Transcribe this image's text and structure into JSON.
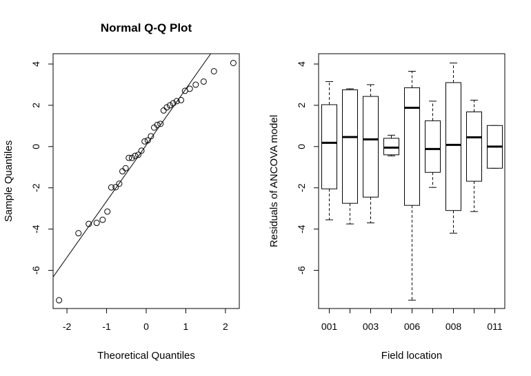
{
  "colors": {
    "background": "#ffffff",
    "ink": "#000000"
  },
  "chart_data": [
    {
      "type": "scatter",
      "title": "Normal Q-Q Plot",
      "xlabel": "Theoretical Quantiles",
      "ylabel": "Sample Quantiles",
      "xlim": [
        -2.35,
        2.35
      ],
      "ylim": [
        -7.85,
        4.5
      ],
      "xticks": [
        -2,
        -1,
        0,
        1,
        2
      ],
      "yticks": [
        -6,
        -4,
        -2,
        0,
        2,
        4
      ],
      "xtick_labels": [
        "-2",
        "-1",
        "0",
        "1",
        "2"
      ],
      "ytick_labels": [
        "-6",
        "-4",
        "-2",
        "0",
        "2",
        "4"
      ],
      "grid": false,
      "marker": "open-circle",
      "points": [
        {
          "x": -2.2,
          "y": -7.45
        },
        {
          "x": -1.71,
          "y": -4.2
        },
        {
          "x": -1.45,
          "y": -3.75
        },
        {
          "x": -1.25,
          "y": -3.7
        },
        {
          "x": -1.1,
          "y": -3.55
        },
        {
          "x": -0.98,
          "y": -3.15
        },
        {
          "x": -0.88,
          "y": -1.98
        },
        {
          "x": -0.77,
          "y": -1.97
        },
        {
          "x": -0.68,
          "y": -1.8
        },
        {
          "x": -0.6,
          "y": -1.2
        },
        {
          "x": -0.52,
          "y": -1.05
        },
        {
          "x": -0.44,
          "y": -0.55
        },
        {
          "x": -0.36,
          "y": -0.55
        },
        {
          "x": -0.28,
          "y": -0.45
        },
        {
          "x": -0.2,
          "y": -0.4
        },
        {
          "x": -0.12,
          "y": -0.2
        },
        {
          "x": -0.04,
          "y": 0.25
        },
        {
          "x": 0.04,
          "y": 0.3
        },
        {
          "x": 0.12,
          "y": 0.5
        },
        {
          "x": 0.2,
          "y": 0.92
        },
        {
          "x": 0.28,
          "y": 1.05
        },
        {
          "x": 0.36,
          "y": 1.1
        },
        {
          "x": 0.44,
          "y": 1.75
        },
        {
          "x": 0.52,
          "y": 1.9
        },
        {
          "x": 0.6,
          "y": 2.0
        },
        {
          "x": 0.68,
          "y": 2.1
        },
        {
          "x": 0.77,
          "y": 2.2
        },
        {
          "x": 0.88,
          "y": 2.25
        },
        {
          "x": 0.98,
          "y": 2.7
        },
        {
          "x": 1.1,
          "y": 2.8
        },
        {
          "x": 1.25,
          "y": 3.0
        },
        {
          "x": 1.45,
          "y": 3.15
        },
        {
          "x": 1.71,
          "y": 3.65
        },
        {
          "x": 2.2,
          "y": 4.05
        }
      ],
      "reference_line": {
        "intercept": 0.07,
        "slope": 2.72
      }
    },
    {
      "type": "box",
      "title": "",
      "xlabel": "Field location",
      "ylabel": "Residuals of ANCOVA model",
      "ylim": [
        -7.85,
        4.5
      ],
      "yticks": [
        -6,
        -4,
        -2,
        0,
        2,
        4
      ],
      "ytick_labels": [
        "-6",
        "-4",
        "-2",
        "0",
        "2",
        "4"
      ],
      "grid": false,
      "categories": [
        "001",
        "",
        "003",
        "",
        "006",
        "",
        "008",
        "",
        "011"
      ],
      "boxes": [
        {
          "whisker_low": -3.55,
          "q1": -2.05,
          "median": 0.18,
          "q3": 2.03,
          "whisker_high": 3.15
        },
        {
          "whisker_low": -3.75,
          "q1": -2.75,
          "median": 0.46,
          "q3": 2.75,
          "whisker_high": 2.8
        },
        {
          "whisker_low": -3.7,
          "q1": -2.45,
          "median": 0.35,
          "q3": 2.43,
          "whisker_high": 3.0
        },
        {
          "whisker_low": -0.45,
          "q1": -0.4,
          "median": -0.05,
          "q3": 0.4,
          "whisker_high": 0.55
        },
        {
          "whisker_low": -7.45,
          "q1": -2.85,
          "median": 1.88,
          "q3": 2.85,
          "whisker_high": 3.65
        },
        {
          "whisker_low": -1.98,
          "q1": -1.25,
          "median": -0.12,
          "q3": 1.25,
          "whisker_high": 2.2
        },
        {
          "whisker_low": -4.2,
          "q1": -3.1,
          "median": 0.08,
          "q3": 3.1,
          "whisker_high": 4.05
        },
        {
          "whisker_low": -3.15,
          "q1": -1.68,
          "median": 0.45,
          "q3": 1.68,
          "whisker_high": 2.25
        },
        {
          "whisker_low": -1.05,
          "q1": -1.05,
          "median": 0.0,
          "q3": 1.02,
          "whisker_high": 1.02
        }
      ]
    }
  ]
}
